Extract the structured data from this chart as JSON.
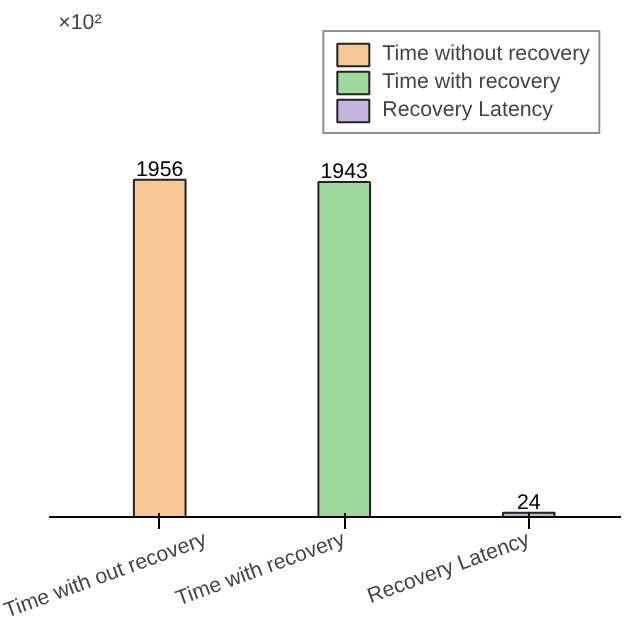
{
  "chart_data": {
    "type": "bar",
    "categories": [
      "Time with out recovery",
      "Time with recovery",
      "Recovery Latency"
    ],
    "series": [
      {
        "name": "Time without recovery",
        "color": "#f9c897",
        "values": [
          1956,
          null,
          null
        ]
      },
      {
        "name": "Time with recovery",
        "color": "#9fd89b",
        "values": [
          null,
          1943,
          null
        ]
      },
      {
        "name": "Recovery Latency",
        "color": "#c5b5dc",
        "values": [
          null,
          null,
          24
        ]
      }
    ],
    "data_labels": true,
    "legend": "top right",
    "tick_labels": "x",
    "annotations": [
      "×10²"
    ]
  }
}
